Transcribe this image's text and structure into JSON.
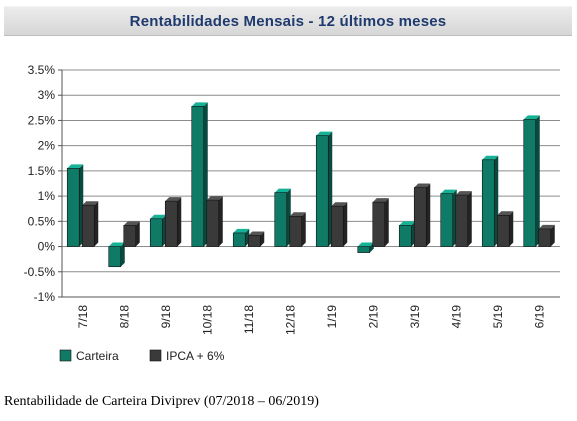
{
  "header": {
    "title": "Rentabilidades Mensais - 12 últimos meses"
  },
  "caption": "Rentabilidade de Carteira Diviprev (07/2018 – 06/2019)",
  "chart_data": {
    "type": "bar",
    "categories": [
      "7/18",
      "8/18",
      "9/18",
      "10/18",
      "11/18",
      "12/18",
      "1/19",
      "2/19",
      "3/19",
      "4/19",
      "5/19",
      "6/19"
    ],
    "series": [
      {
        "name": "Carteira",
        "color": "#0f7b67",
        "values": [
          1.55,
          -0.4,
          0.55,
          2.78,
          0.27,
          1.07,
          2.2,
          -0.12,
          0.42,
          1.05,
          1.72,
          2.52
        ]
      },
      {
        "name": "IPCA + 6%",
        "color": "#3a3a3a",
        "values": [
          0.82,
          0.42,
          0.9,
          0.92,
          0.22,
          0.6,
          0.8,
          0.88,
          1.17,
          1.02,
          0.62,
          0.35
        ]
      }
    ],
    "yticks": [
      "3.5%",
      "3%",
      "2.5%",
      "2%",
      "1.5%",
      "1%",
      "0.5%",
      "0%",
      "-0.5%",
      "-1%"
    ],
    "ylim": [
      -1,
      3.5
    ],
    "grid": true,
    "legend": "bottom-left"
  }
}
